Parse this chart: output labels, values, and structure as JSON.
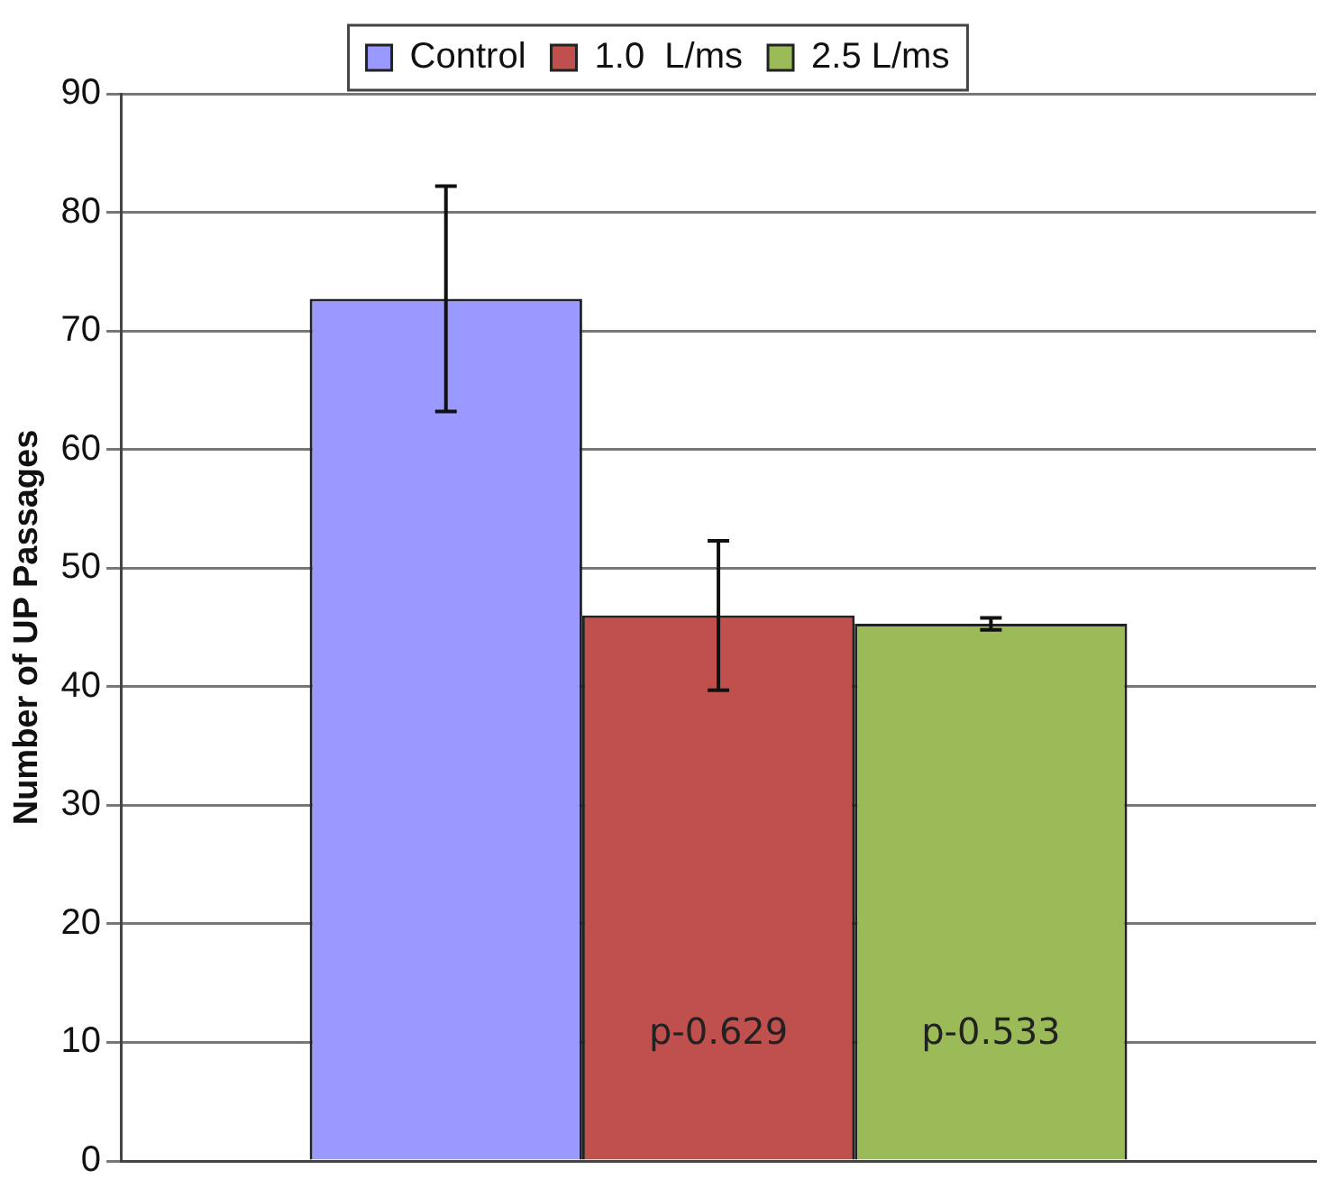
{
  "chart_data": {
    "type": "bar",
    "ylabel": "Number of UP Passages",
    "categories": [
      null
    ],
    "series": [
      {
        "name": "Control",
        "color": "#9999ff",
        "values": [
          72.7
        ],
        "errors": [
          9.5
        ]
      },
      {
        "name": "1.0  L/ms",
        "color": "#c0504d",
        "values": [
          46.0
        ],
        "errors": [
          6.3
        ]
      },
      {
        "name": "2.5 L/ms",
        "color": "#9bbb59",
        "values": [
          45.3
        ],
        "errors": [
          0.5
        ]
      }
    ],
    "ylim": [
      0,
      90
    ],
    "yticks": [
      0,
      10,
      20,
      30,
      40,
      50,
      60,
      70,
      80,
      90
    ],
    "grid": "y",
    "legend": "top",
    "annotations": [
      "p-0.629",
      "p-0.533"
    ]
  }
}
